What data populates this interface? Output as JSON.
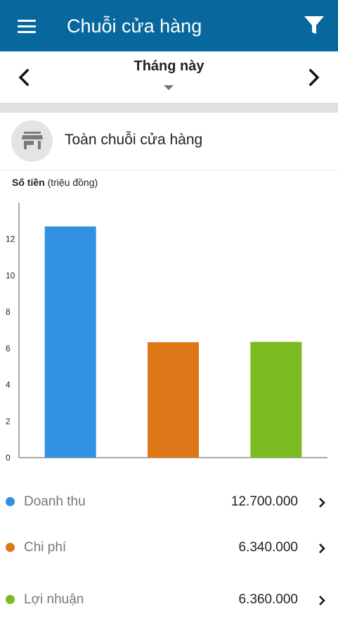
{
  "appbar": {
    "title": "Chuỗi cửa hàng",
    "menu_icon": "menu-icon",
    "filter_icon": "filter-icon"
  },
  "datebar": {
    "period_label": "Tháng này"
  },
  "store": {
    "name": "Toàn chuỗi cửa hàng",
    "icon": "store-icon"
  },
  "chart_data": {
    "type": "bar",
    "ylabel_bold": "Số tiền",
    "ylabel_unit": "(triệu đồng)",
    "yticks": [
      0,
      2,
      4,
      6,
      8,
      10,
      12
    ],
    "ylim": [
      0,
      14
    ],
    "categories": [
      "Doanh thu",
      "Chi phí",
      "Lợi nhuận"
    ],
    "values": [
      12.7,
      6.34,
      6.36
    ],
    "colors": [
      "#3291e2",
      "#dd7718",
      "#7cbc22"
    ],
    "grid": false
  },
  "legend": [
    {
      "label": "Doanh thu",
      "value": "12.700.000",
      "color": "#3291e2"
    },
    {
      "label": "Chi phí",
      "value": "6.340.000",
      "color": "#dd7718"
    },
    {
      "label": "Lợi nhuận",
      "value": "6.360.000",
      "color": "#7cbc22"
    }
  ]
}
